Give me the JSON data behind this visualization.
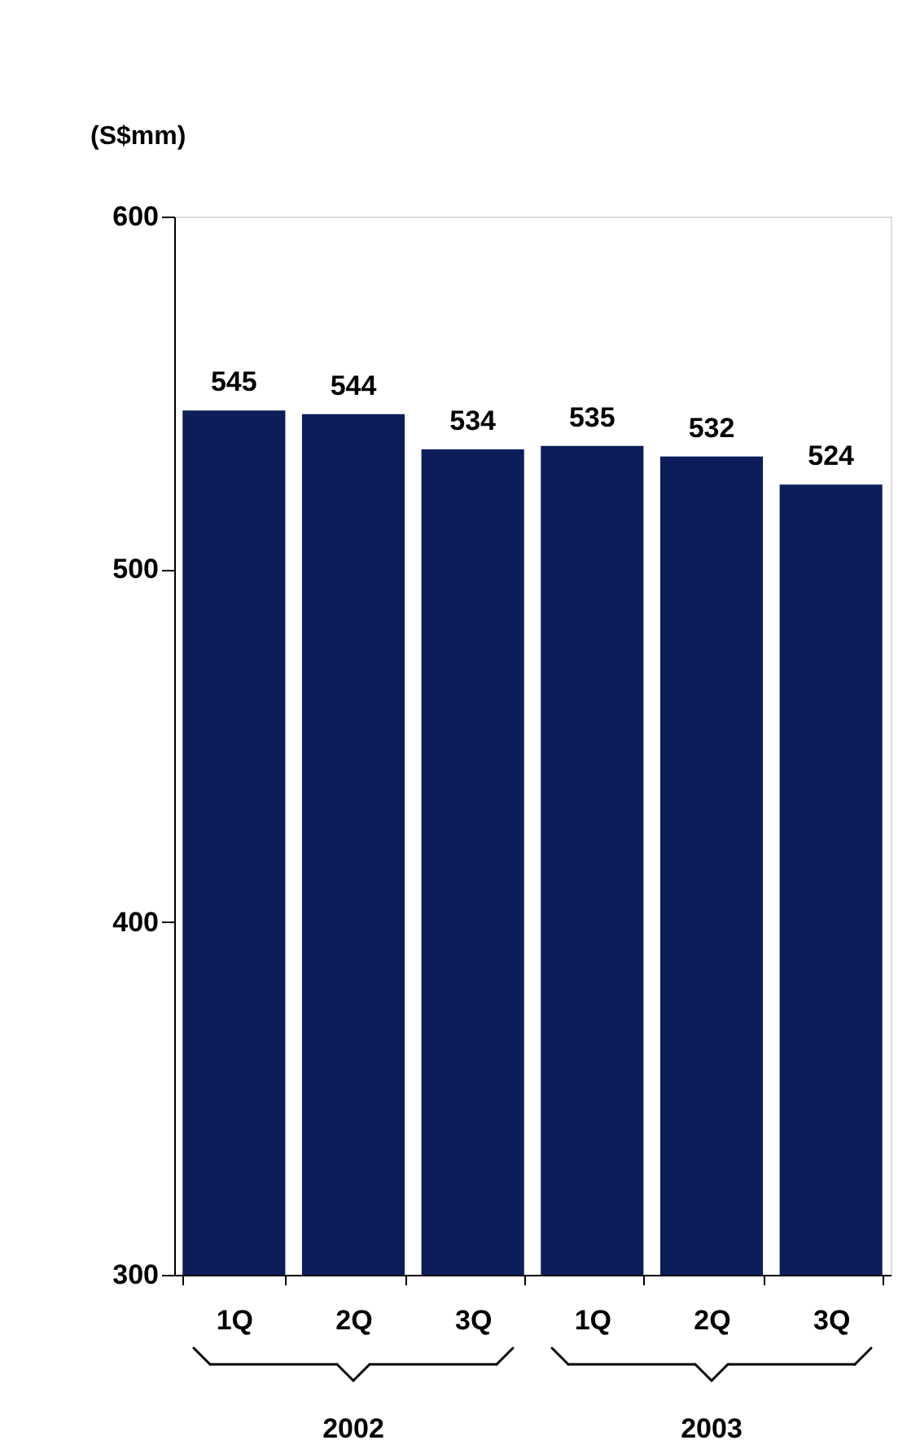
{
  "chart_data": {
    "type": "bar",
    "ylabel": "(S$mm)",
    "categories": [
      "1Q",
      "2Q",
      "3Q",
      "1Q",
      "2Q",
      "3Q"
    ],
    "values": [
      545,
      544,
      534,
      535,
      532,
      524
    ],
    "color": "#0c1d5a",
    "ylim": [
      300,
      600
    ],
    "yticks": [
      300,
      400,
      500,
      600
    ],
    "data_labels": true,
    "grid": false,
    "annotations": [
      "2002",
      "2003"
    ]
  }
}
